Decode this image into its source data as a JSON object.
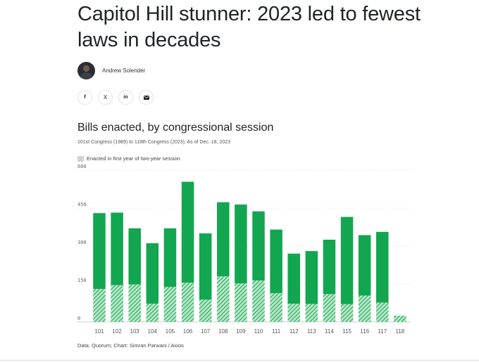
{
  "article": {
    "headline": "Capitol Hill stunner: 2023 led to fewest laws in decades",
    "author": "Andrew Solender"
  },
  "share": [
    {
      "name": "facebook",
      "label": "f"
    },
    {
      "name": "x",
      "label": "X"
    },
    {
      "name": "linkedin",
      "label": "in"
    },
    {
      "name": "email",
      "label": "email"
    }
  ],
  "colors": {
    "bar": "#12a650",
    "hatch_bg": "#b9e6c8",
    "hatch_line": "#12a650"
  },
  "chart_data": {
    "type": "bar",
    "title": "Bills enacted, by congressional session",
    "subtitle": "101st Congress (1989) to 118th Congress (2023); As of Dec. 18, 2023",
    "legend": "Enacted in first year of two-year session",
    "categories": [
      "101",
      "102",
      "103",
      "104",
      "105",
      "106",
      "107",
      "108",
      "109",
      "110",
      "111",
      "112",
      "113",
      "114",
      "115",
      "116",
      "117",
      "118"
    ],
    "series": [
      {
        "name": "Total enacted",
        "values": [
          430,
          432,
          370,
          311,
          370,
          554,
          350,
          473,
          464,
          437,
          365,
          270,
          280,
          325,
          415,
          343,
          356,
          25
        ]
      },
      {
        "name": "Enacted in first year of two-year session",
        "values": [
          130,
          145,
          148,
          72,
          138,
          155,
          88,
          180,
          152,
          164,
          114,
          72,
          71,
          110,
          70,
          104,
          76,
          25
        ]
      }
    ],
    "yticks": [
      "600",
      "450",
      "300",
      "150",
      "0"
    ],
    "ylim": [
      0,
      600
    ],
    "source": "Data: Quorum; Chart: Simran Parwani / Axios"
  }
}
